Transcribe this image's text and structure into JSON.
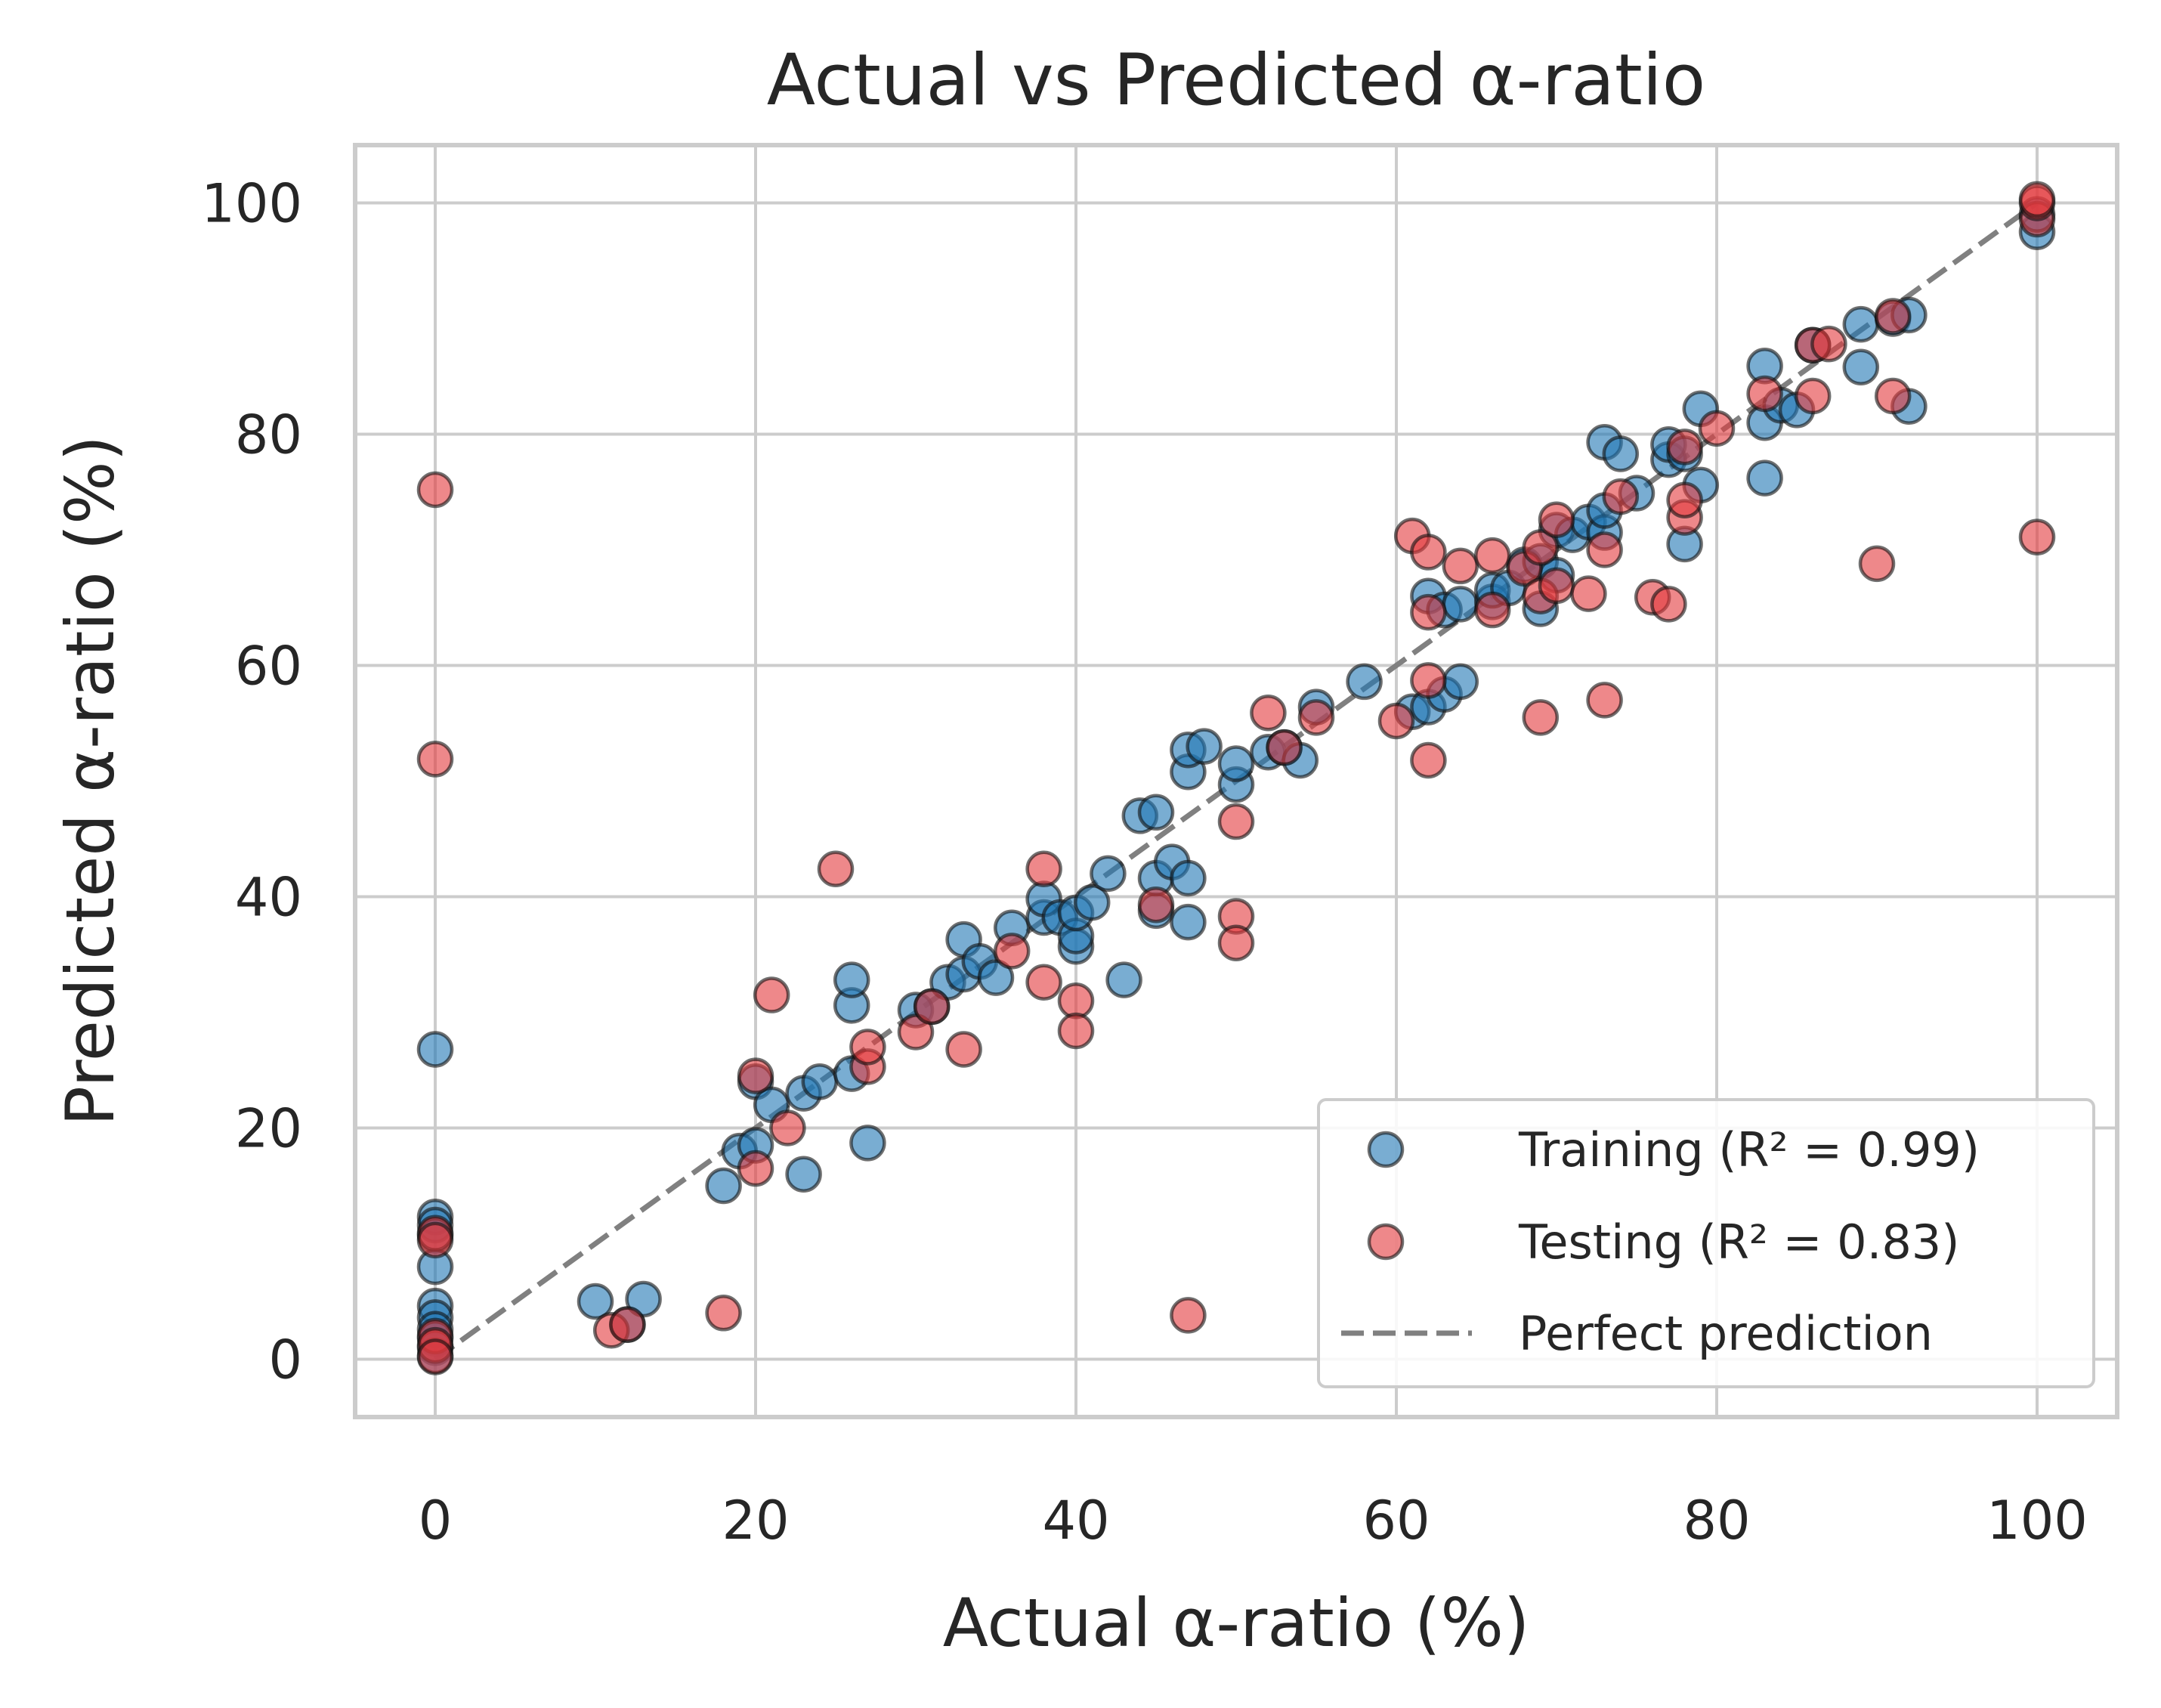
{
  "chart_data": {
    "type": "scatter",
    "title": "Actual vs Predicted α-ratio",
    "xlabel": "Actual α-ratio (%)",
    "ylabel": "Predicted α-ratio (%)",
    "xlim": [
      -5,
      105
    ],
    "ylim": [
      -5,
      105
    ],
    "xticks": [
      "0",
      "20",
      "40",
      "60",
      "80",
      "100"
    ],
    "yticks": [
      "0",
      "20",
      "40",
      "60",
      "80",
      "100"
    ],
    "grid": true,
    "legend_position": "lower-right",
    "series": [
      {
        "name": "Training (R² = 0.99)",
        "color": "#1f77b4",
        "points": [
          [
            0,
            26.8
          ],
          [
            0,
            12.3
          ],
          [
            0,
            11.6
          ],
          [
            0,
            10.7
          ],
          [
            0,
            8
          ],
          [
            0,
            4.6
          ],
          [
            0,
            3.6
          ],
          [
            0,
            2.6
          ],
          [
            0,
            1.8
          ],
          [
            0,
            1
          ],
          [
            0,
            0.3
          ],
          [
            10,
            5
          ],
          [
            12,
            3
          ],
          [
            13,
            5.2
          ],
          [
            18,
            15
          ],
          [
            19,
            18
          ],
          [
            20,
            18.5
          ],
          [
            20,
            24
          ],
          [
            21,
            22
          ],
          [
            23,
            16
          ],
          [
            23,
            23
          ],
          [
            24,
            24
          ],
          [
            26,
            24.7
          ],
          [
            26,
            30.6
          ],
          [
            26,
            32.8
          ],
          [
            27,
            18.7
          ],
          [
            30,
            30.2
          ],
          [
            31,
            30.5
          ],
          [
            32,
            32.6
          ],
          [
            33,
            33.3
          ],
          [
            33,
            36.3
          ],
          [
            34,
            34.4
          ],
          [
            35,
            33
          ],
          [
            36,
            37.3
          ],
          [
            38,
            38.2
          ],
          [
            38,
            39.8
          ],
          [
            39,
            38.2
          ],
          [
            40,
            35.7
          ],
          [
            40,
            36.6
          ],
          [
            40,
            38.6
          ],
          [
            41,
            39.5
          ],
          [
            42,
            42
          ],
          [
            43,
            32.8
          ],
          [
            44,
            47
          ],
          [
            45,
            38.8
          ],
          [
            45,
            41.6
          ],
          [
            45,
            47.3
          ],
          [
            46,
            43
          ],
          [
            47,
            37.8
          ],
          [
            47,
            41.6
          ],
          [
            47,
            50.8
          ],
          [
            47,
            52.7
          ],
          [
            48,
            53
          ],
          [
            50,
            49.7
          ],
          [
            50,
            51.5
          ],
          [
            52,
            52.5
          ],
          [
            53,
            52.9
          ],
          [
            54,
            51.8
          ],
          [
            55,
            56.4
          ],
          [
            58,
            58.6
          ],
          [
            61,
            56
          ],
          [
            62,
            56.4
          ],
          [
            62,
            66
          ],
          [
            63,
            57.5
          ],
          [
            63,
            64.8
          ],
          [
            64,
            58.6
          ],
          [
            64,
            65.3
          ],
          [
            66,
            65.5
          ],
          [
            66,
            66.5
          ],
          [
            67,
            66.7
          ],
          [
            68,
            68.7
          ],
          [
            69,
            64.9
          ],
          [
            69,
            69
          ],
          [
            70,
            67.8
          ],
          [
            70,
            71.7
          ],
          [
            71,
            71.3
          ],
          [
            72,
            72.4
          ],
          [
            73,
            71.5
          ],
          [
            73,
            73.4
          ],
          [
            73,
            79.3
          ],
          [
            74,
            78.3
          ],
          [
            75,
            74.9
          ],
          [
            77,
            77.8
          ],
          [
            77,
            79.1
          ],
          [
            78,
            70.5
          ],
          [
            78,
            78.3
          ],
          [
            79,
            75.6
          ],
          [
            79,
            82.2
          ],
          [
            83,
            76.2
          ],
          [
            83,
            81
          ],
          [
            83,
            85.9
          ],
          [
            84,
            82.5
          ],
          [
            85,
            82.1
          ],
          [
            86,
            87.7
          ],
          [
            89,
            85.8
          ],
          [
            89,
            89.5
          ],
          [
            91,
            90
          ],
          [
            92,
            90.3
          ],
          [
            92,
            82.4
          ],
          [
            100,
            97.5
          ],
          [
            100,
            99
          ]
        ]
      },
      {
        "name": "Testing (R² = 0.83)",
        "color": "#e3383c",
        "points": [
          [
            0,
            75.2
          ],
          [
            0,
            51.9
          ],
          [
            0,
            10.9
          ],
          [
            0,
            10.3
          ],
          [
            0,
            2
          ],
          [
            0,
            1.2
          ],
          [
            0,
            0.2
          ],
          [
            11,
            2.5
          ],
          [
            12,
            3
          ],
          [
            18,
            4
          ],
          [
            20,
            16.5
          ],
          [
            20,
            24.5
          ],
          [
            21,
            31.5
          ],
          [
            22,
            20
          ],
          [
            25,
            42.4
          ],
          [
            27,
            25.3
          ],
          [
            27,
            27
          ],
          [
            30,
            28.3
          ],
          [
            31,
            30.5
          ],
          [
            33,
            26.8
          ],
          [
            36,
            35.3
          ],
          [
            38,
            32.6
          ],
          [
            38,
            42.4
          ],
          [
            40,
            31
          ],
          [
            40,
            28.4
          ],
          [
            45,
            39.3
          ],
          [
            47,
            3.8
          ],
          [
            50,
            46.5
          ],
          [
            50,
            38.3
          ],
          [
            50,
            36
          ],
          [
            52,
            55.9
          ],
          [
            53,
            52.9
          ],
          [
            55,
            55.5
          ],
          [
            60,
            55.2
          ],
          [
            61,
            71.2
          ],
          [
            62,
            69.8
          ],
          [
            62,
            64.6
          ],
          [
            62,
            58.7
          ],
          [
            62,
            51.8
          ],
          [
            64,
            68.6
          ],
          [
            66,
            69.5
          ],
          [
            66,
            64.8
          ],
          [
            68,
            68.4
          ],
          [
            69,
            70.2
          ],
          [
            69,
            55.5
          ],
          [
            69,
            66
          ],
          [
            70,
            66.9
          ],
          [
            70,
            72.6
          ],
          [
            72,
            66.2
          ],
          [
            73,
            70
          ],
          [
            73,
            57
          ],
          [
            74,
            74.6
          ],
          [
            76,
            65.9
          ],
          [
            77,
            65.3
          ],
          [
            78,
            72.8
          ],
          [
            78,
            74.3
          ],
          [
            78,
            78.9
          ],
          [
            80,
            80.5
          ],
          [
            83,
            83.5
          ],
          [
            86,
            83.3
          ],
          [
            86,
            87.7
          ],
          [
            87,
            87.8
          ],
          [
            90,
            68.8
          ],
          [
            91,
            83.3
          ],
          [
            91,
            90.2
          ],
          [
            100,
            71.1
          ],
          [
            100,
            98.6
          ],
          [
            100,
            100
          ],
          [
            100,
            100.3
          ]
        ]
      },
      {
        "name": "Perfect prediction",
        "color": "#808080",
        "style": "dashed",
        "points": [
          [
            0,
            0
          ],
          [
            100,
            100
          ]
        ]
      }
    ]
  }
}
